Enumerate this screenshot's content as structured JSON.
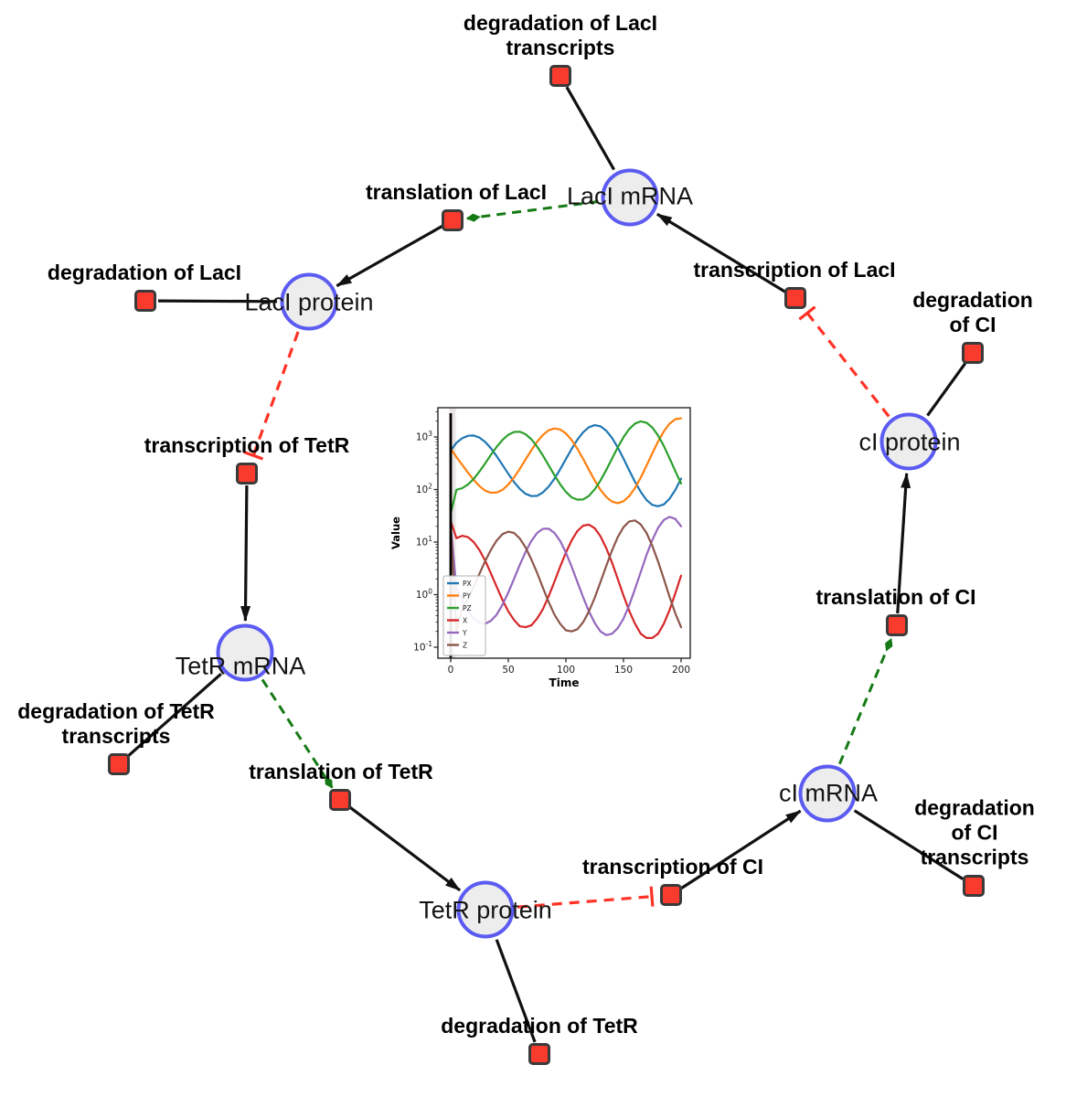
{
  "diagram": {
    "species_nodes": [
      {
        "id": "laci-mrna",
        "label": "LacI mRNA"
      },
      {
        "id": "laci-protein",
        "label": "LacI protein"
      },
      {
        "id": "tetr-mrna",
        "label": "TetR mRNA"
      },
      {
        "id": "tetr-protein",
        "label": "TetR protein"
      },
      {
        "id": "ci-mrna",
        "label": "cI mRNA"
      },
      {
        "id": "ci-protein",
        "label": "cI protein"
      }
    ],
    "reaction_nodes": [
      {
        "id": "deg-laci-transcripts",
        "label": "degradation of LacI\ntranscripts"
      },
      {
        "id": "translation-laci",
        "label": "translation of LacI"
      },
      {
        "id": "transcription-laci",
        "label": "transcription of LacI"
      },
      {
        "id": "deg-laci",
        "label": "degradation of LacI"
      },
      {
        "id": "deg-ci",
        "label": "degradation of CI"
      },
      {
        "id": "transcription-tetr",
        "label": "transcription of TetR"
      },
      {
        "id": "translation-ci",
        "label": "translation of CI"
      },
      {
        "id": "deg-tetr-transcripts",
        "label": "degradation of TetR\ntranscripts"
      },
      {
        "id": "translation-tetr",
        "label": "translation of TetR"
      },
      {
        "id": "deg-ci-transcripts",
        "label": "degradation of CI\ntranscripts"
      },
      {
        "id": "transcription-ci",
        "label": "transcription of CI"
      },
      {
        "id": "deg-tetr",
        "label": "degradation of TetR"
      }
    ],
    "edges": [
      {
        "from": "laci-mrna",
        "to": "deg-laci-transcripts",
        "type": "consumption"
      },
      {
        "from": "laci-mrna",
        "to": "translation-laci",
        "type": "translation"
      },
      {
        "from": "translation-laci",
        "to": "laci-protein",
        "type": "production"
      },
      {
        "from": "transcription-laci",
        "to": "laci-mrna",
        "type": "production"
      },
      {
        "from": "ci-protein",
        "to": "transcription-laci",
        "type": "inhibition"
      },
      {
        "from": "laci-protein",
        "to": "deg-laci",
        "type": "consumption"
      },
      {
        "from": "laci-protein",
        "to": "transcription-tetr",
        "type": "inhibition"
      },
      {
        "from": "transcription-tetr",
        "to": "tetr-mrna",
        "type": "production"
      },
      {
        "from": "tetr-mrna",
        "to": "deg-tetr-transcripts",
        "type": "consumption"
      },
      {
        "from": "tetr-mrna",
        "to": "translation-tetr",
        "type": "translation"
      },
      {
        "from": "translation-tetr",
        "to": "tetr-protein",
        "type": "production"
      },
      {
        "from": "tetr-protein",
        "to": "deg-tetr",
        "type": "consumption"
      },
      {
        "from": "tetr-protein",
        "to": "transcription-ci",
        "type": "inhibition"
      },
      {
        "from": "transcription-ci",
        "to": "ci-mrna",
        "type": "production"
      },
      {
        "from": "ci-mrna",
        "to": "deg-ci-transcripts",
        "type": "consumption"
      },
      {
        "from": "ci-mrna",
        "to": "translation-ci",
        "type": "translation"
      },
      {
        "from": "translation-ci",
        "to": "ci-protein",
        "type": "production"
      },
      {
        "from": "ci-protein",
        "to": "deg-ci",
        "type": "consumption"
      }
    ],
    "styles": {
      "species_fill": "#ededed",
      "species_border": "#5b5bf2",
      "reaction_fill": "#f93b2d",
      "reaction_border": "#3a3a3a",
      "flow_color": "#111111",
      "translation_color": "#157a15",
      "inhibition_color": "#ff3226"
    }
  },
  "chart_data": {
    "type": "line",
    "title": "",
    "xlabel": "Time",
    "ylabel": "Value",
    "x_ticks": [
      0,
      50,
      100,
      150,
      200
    ],
    "y_scale": "log",
    "y_tick_exponents": [
      -1,
      0,
      1,
      2,
      3
    ],
    "xlim": [
      0,
      200
    ],
    "ylim_log": [
      -1.05,
      3.56
    ],
    "legend_position": "lower left",
    "grid": false,
    "vline_x": 0,
    "x": [
      0,
      5,
      10,
      15,
      20,
      25,
      30,
      35,
      40,
      45,
      50,
      55,
      60,
      65,
      70,
      75,
      80,
      85,
      90,
      95,
      100,
      105,
      110,
      115,
      120,
      125,
      130,
      135,
      140,
      145,
      150,
      155,
      160,
      165,
      170,
      175,
      180,
      185,
      190,
      195,
      200
    ],
    "series": [
      {
        "name": "PX",
        "color": "#1f77b4",
        "values": [
          550,
          776,
          946,
          1054,
          1067,
          972,
          802,
          605,
          428,
          293,
          199,
          139,
          103,
          83,
          75,
          76,
          88,
          113,
          160,
          242,
          379,
          593,
          889,
          1231,
          1535,
          1679,
          1596,
          1318,
          963,
          633,
          388,
          231,
          140,
          90,
          63,
          51,
          48,
          52,
          67,
          98,
          161
        ]
      },
      {
        "name": "PY",
        "color": "#ff7f0e",
        "values": [
          600,
          415,
          295,
          209,
          152,
          116,
          95,
          87,
          88,
          99,
          124,
          170,
          248,
          373,
          560,
          809,
          1091,
          1337,
          1452,
          1390,
          1170,
          877,
          597,
          382,
          237,
          149,
          99,
          72,
          59,
          55,
          60,
          75,
          107,
          169,
          284,
          489,
          818,
          1279,
          1791,
          2178,
          2259
        ]
      },
      {
        "name": "PZ",
        "color": "#2ca02c",
        "values": [
          35,
          99,
          106,
          125,
          160,
          221,
          316,
          459,
          653,
          881,
          1102,
          1244,
          1256,
          1127,
          904,
          657,
          445,
          290,
          188,
          126,
          90,
          71,
          64,
          65,
          76,
          101,
          148,
          235,
          387,
          634,
          989,
          1416,
          1799,
          1982,
          1870,
          1514,
          1069,
          675,
          394,
          224,
          130
        ]
      },
      {
        "name": "X",
        "color": "#d62728",
        "values": [
          25,
          11.9,
          13.2,
          12.4,
          10,
          7,
          4.4,
          2.5,
          1.4,
          0.79,
          0.48,
          0.33,
          0.25,
          0.24,
          0.26,
          0.35,
          0.53,
          0.93,
          1.75,
          3.4,
          6.3,
          10.8,
          16.3,
          20.6,
          21.5,
          18.4,
          12.9,
          7.7,
          4.1,
          2,
          0.96,
          0.49,
          0.28,
          0.18,
          0.15,
          0.15,
          0.18,
          0.28,
          0.51,
          1.06,
          2.3
        ]
      },
      {
        "name": "Y",
        "color": "#9467bd",
        "values": [
          20,
          1.3,
          0.78,
          0.5,
          0.35,
          0.29,
          0.28,
          0.32,
          0.42,
          0.65,
          1.1,
          2,
          3.7,
          6.5,
          10.5,
          14.9,
          17.9,
          18,
          15,
          10.5,
          6.3,
          3.4,
          1.74,
          0.89,
          0.48,
          0.29,
          0.2,
          0.17,
          0.18,
          0.23,
          0.35,
          0.63,
          1.28,
          2.7,
          5.7,
          10.9,
          18.6,
          26.4,
          30.2,
          27.5,
          20
        ]
      },
      {
        "name": "Z",
        "color": "#8c564b",
        "values": [
          20,
          0.2,
          0.55,
          0.85,
          1.43,
          2.5,
          4.4,
          7.2,
          10.8,
          14.2,
          15.8,
          14.9,
          11.7,
          7.9,
          4.7,
          2.6,
          1.36,
          0.73,
          0.42,
          0.28,
          0.21,
          0.2,
          0.22,
          0.3,
          0.48,
          0.87,
          1.74,
          3.5,
          6.9,
          12.4,
          19.2,
          24.7,
          25.8,
          21.7,
          14.9,
          8.5,
          4.3,
          2,
          0.91,
          0.44,
          0.24
        ]
      }
    ]
  }
}
